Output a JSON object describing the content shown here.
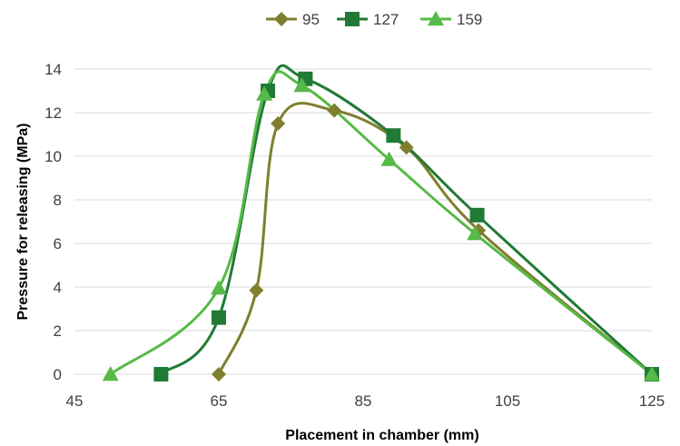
{
  "chart_data": {
    "type": "line",
    "title": "",
    "xlabel": "Placement in chamber (mm)",
    "ylabel": "Pressure for releasing (MPa)",
    "xlim": [
      45,
      125
    ],
    "ylim": [
      0,
      14
    ],
    "xticks": [
      45,
      65,
      85,
      105,
      125
    ],
    "yticks": [
      0,
      2,
      4,
      6,
      8,
      10,
      12,
      14
    ],
    "grid": "horizontal",
    "legend_position": "top",
    "series": [
      {
        "name": "95",
        "color": "#7f7f2e",
        "marker": "diamond",
        "points": [
          [
            65,
            0
          ],
          [
            70.2,
            3.85
          ],
          [
            73.2,
            11.5
          ],
          [
            81,
            12.1
          ],
          [
            91,
            10.4
          ],
          [
            101,
            6.6
          ],
          [
            125,
            0
          ]
        ]
      },
      {
        "name": "127",
        "color": "#217a35",
        "marker": "square",
        "points": [
          [
            57,
            0
          ],
          [
            65,
            2.6
          ],
          [
            71.8,
            13
          ],
          [
            77,
            13.55
          ],
          [
            89.2,
            10.95
          ],
          [
            100.8,
            7.3
          ],
          [
            125,
            0
          ]
        ]
      },
      {
        "name": "159",
        "color": "#57b947",
        "marker": "triangle",
        "points": [
          [
            50,
            0
          ],
          [
            65,
            3.95
          ],
          [
            71.3,
            12.85
          ],
          [
            76.5,
            13.25
          ],
          [
            88.6,
            9.85
          ],
          [
            100.5,
            6.45
          ],
          [
            125,
            0
          ]
        ]
      }
    ]
  }
}
